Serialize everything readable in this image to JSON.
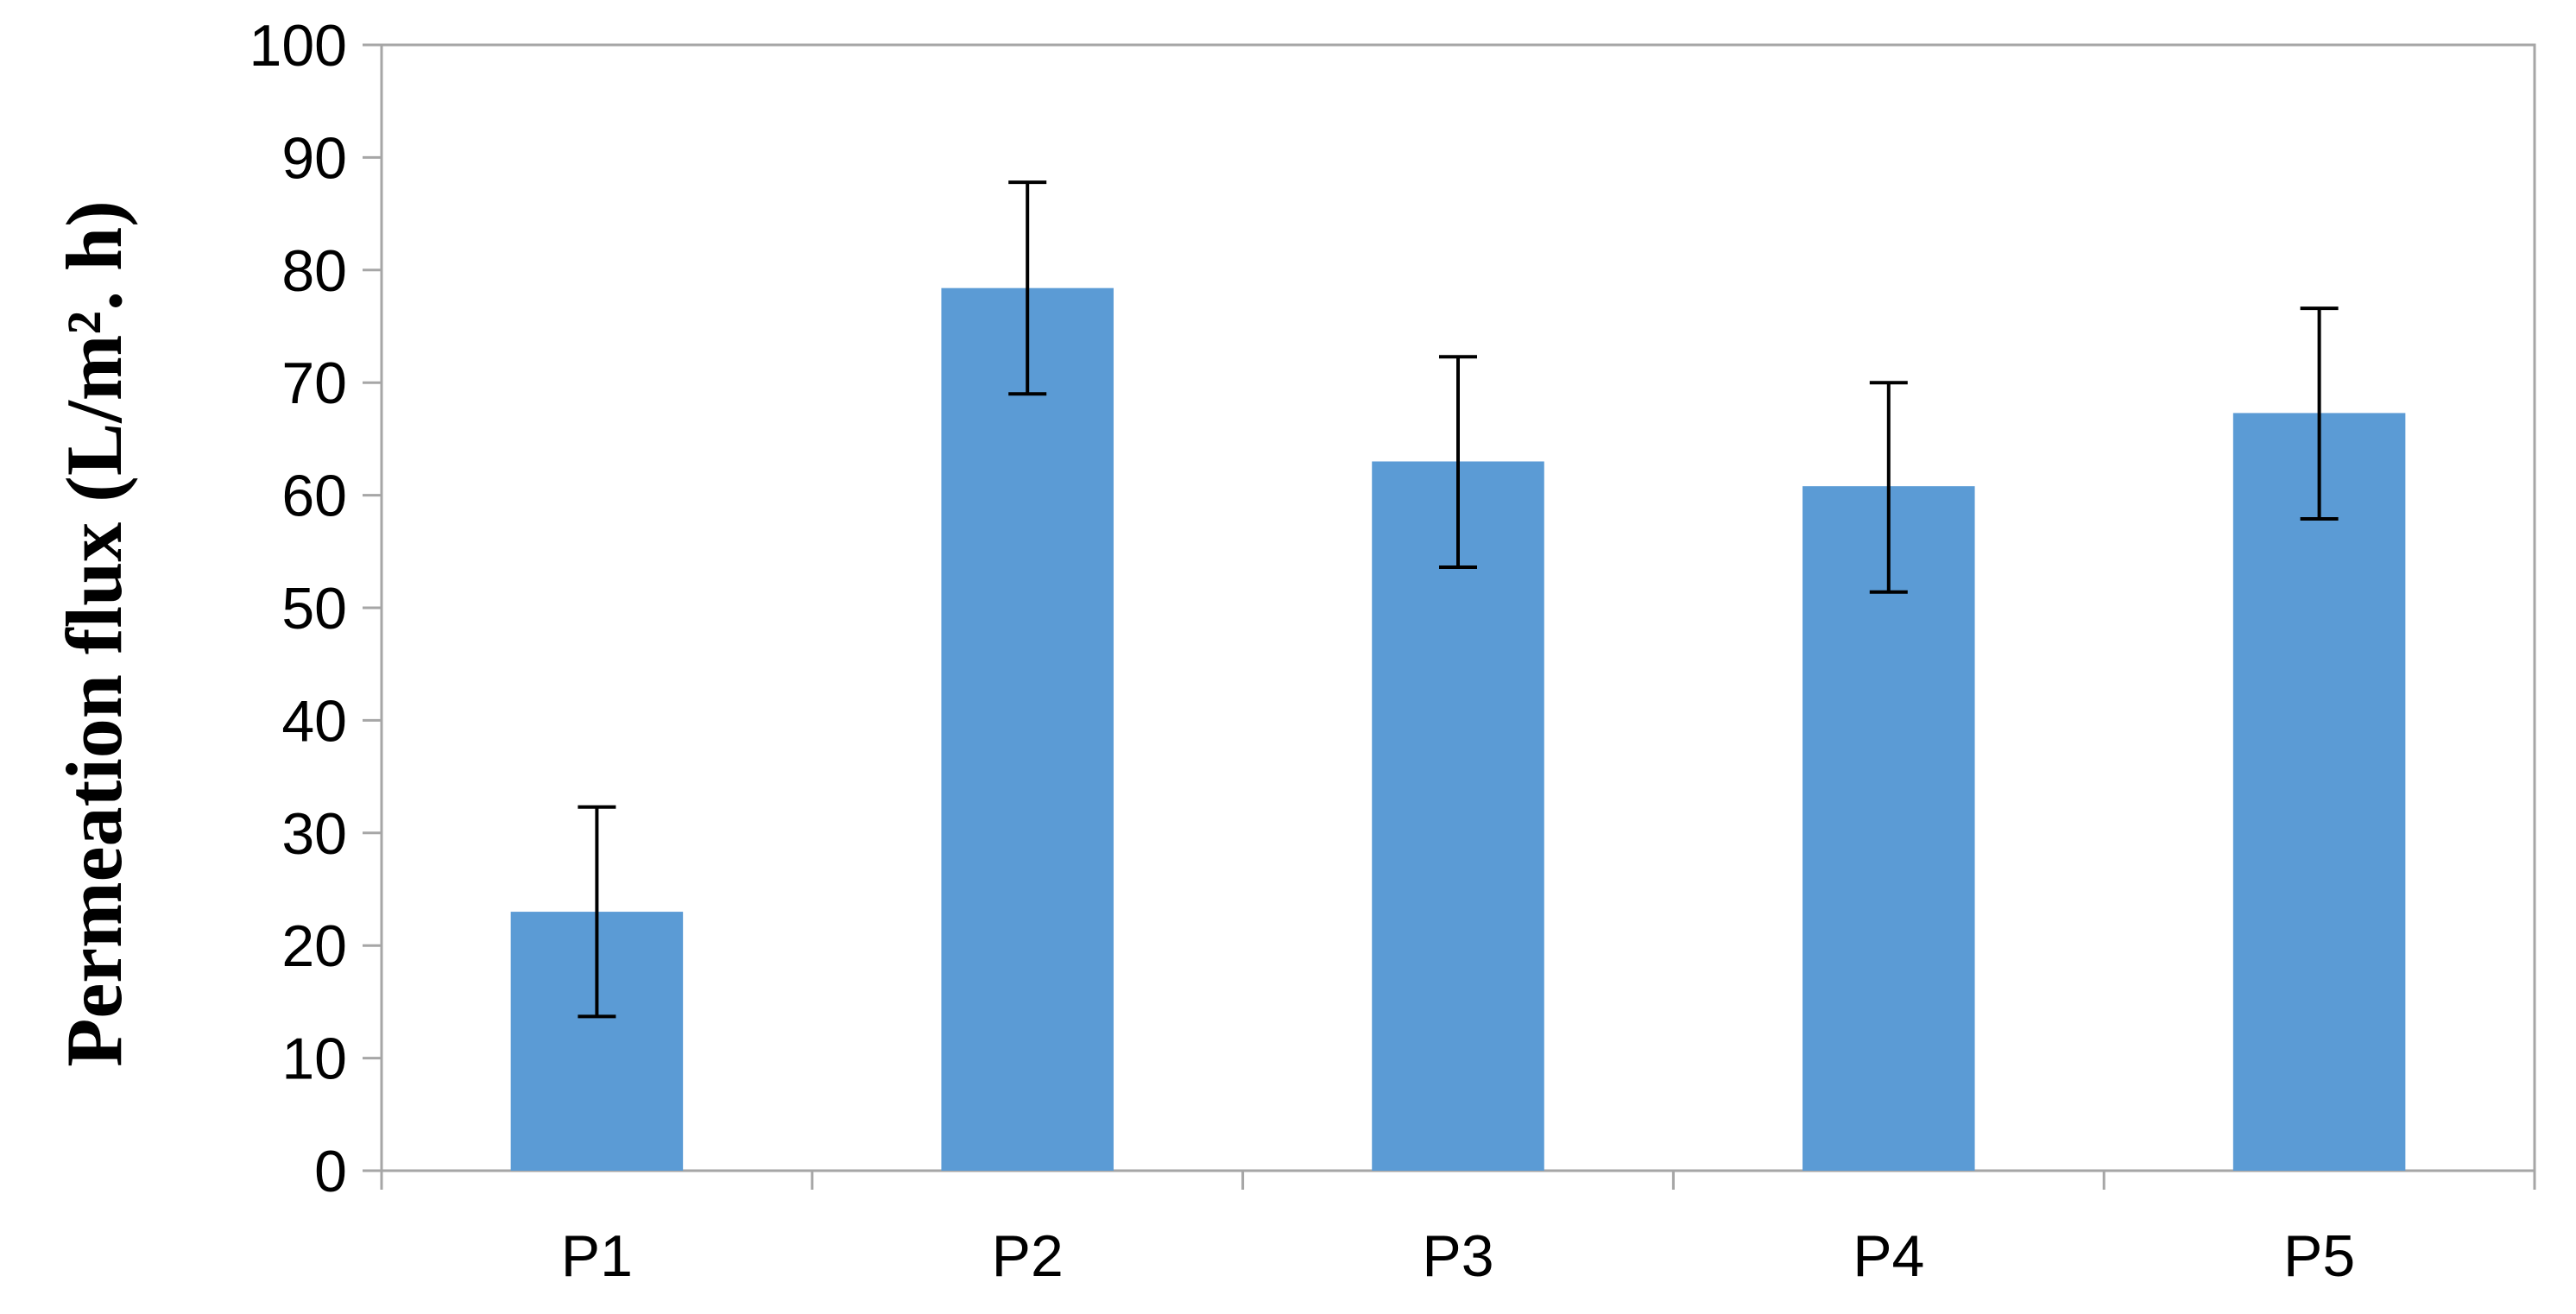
{
  "chart_data": {
    "type": "bar",
    "title": "",
    "xlabel": "",
    "ylabel": "Permeation flux (L/m². h)",
    "categories": [
      "P1",
      "P2",
      "P3",
      "P4",
      "P5"
    ],
    "values": [
      23.0,
      78.4,
      63.0,
      60.8,
      67.3
    ],
    "error_low": [
      13.7,
      69.0,
      53.6,
      51.4,
      57.9
    ],
    "error_high": [
      32.3,
      87.8,
      72.3,
      70.0,
      76.6
    ],
    "ylim": [
      0,
      100
    ],
    "yticks": [
      0,
      10,
      20,
      30,
      40,
      50,
      60,
      70,
      80,
      90,
      100
    ],
    "grid": false,
    "legend": "none",
    "bar_color": "#5B9BD5",
    "axis_color": "#A6A6A6",
    "error_bar_color": "#000000"
  }
}
